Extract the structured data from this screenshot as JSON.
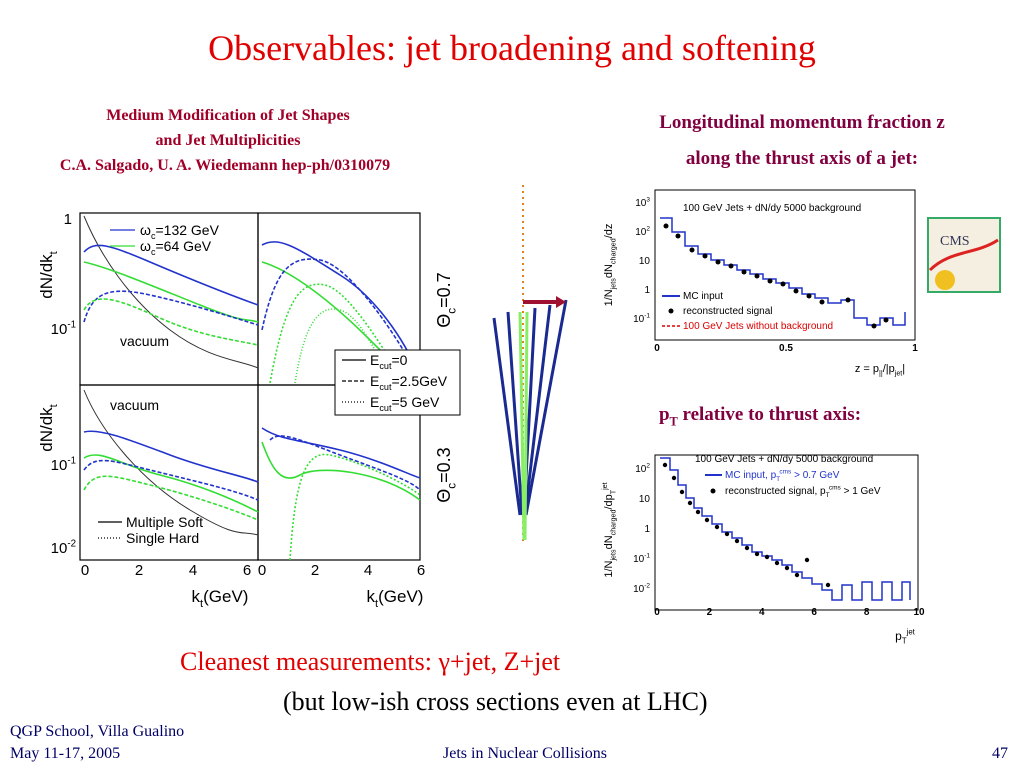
{
  "title": "Observables: jet broadening and softening",
  "left_caption": [
    "Medium Modification of Jet Shapes",
    "and Jet Multiplicities",
    "C.A. Salgado, U. A. Wiedemann hep-ph/0310079"
  ],
  "left_figure": {
    "y_label": [
      "dN/dk",
      {
        "sub": "t"
      }
    ],
    "x_label": [
      "k",
      {
        "sub": "t"
      },
      "(GeV)"
    ],
    "y_ticks_top": [
      "1",
      [
        "10",
        {
          "sup": "-1"
        }
      ]
    ],
    "y_ticks_bottom": [
      [
        "10",
        {
          "sup": "-1"
        }
      ],
      [
        "10",
        {
          "sup": "-2"
        }
      ]
    ],
    "x_ticks": [
      "0",
      "2",
      "4",
      "6"
    ],
    "omega_legend": [
      [
        "ω",
        {
          "sub": "c"
        },
        "=132 GeV"
      ],
      [
        "ω",
        {
          "sub": "c"
        },
        "=64 GeV"
      ]
    ],
    "ecut_legend": [
      [
        "E",
        {
          "sub": "cut"
        },
        "=0"
      ],
      [
        "E",
        {
          "sub": "cut"
        },
        "=2.5GeV"
      ],
      [
        "E",
        {
          "sub": "cut"
        },
        "=5 GeV"
      ]
    ],
    "theta_labels": [
      [
        "Θ",
        {
          "sub": "c"
        },
        "=0.7"
      ],
      [
        "Θ",
        {
          "sub": "c"
        },
        "=0.3"
      ]
    ],
    "vacuum": "vacuum",
    "soft_hard_legend": [
      "Multiple Soft",
      "Single Hard"
    ]
  },
  "right_top": {
    "caption": [
      "Longitudinal momentum fraction z",
      "along the thrust axis of a jet:"
    ],
    "header": "100 GeV Jets + dN/dy 5000 background",
    "legend": [
      "MC input",
      "reconstructed signal",
      "100 GeV Jets without background"
    ],
    "y_label": [
      "1/N",
      {
        "sub": "jets"
      },
      "dN",
      {
        "sub": "charged"
      },
      "/dz"
    ],
    "x_label": [
      "z = p",
      {
        "sub": "||"
      },
      "/|p",
      {
        "sub": "jet"
      },
      "|"
    ],
    "y_ticks": [
      [
        "10",
        {
          "sup": "3"
        }
      ],
      [
        "10",
        {
          "sup": "2"
        }
      ],
      "10",
      "1",
      [
        "10",
        {
          "sup": "-1"
        }
      ]
    ],
    "x_ticks": [
      "0",
      "0.5",
      "1"
    ]
  },
  "right_bottom": {
    "caption": [
      "p",
      {
        "sub": "T"
      },
      " relative to thrust axis:"
    ],
    "header": "100 GeV Jets + dN/dy 5000 background",
    "legend": [
      [
        "MC input, p",
        {
          "sub": "T"
        },
        {
          "sup": "cms"
        },
        " > 0.7 GeV"
      ],
      [
        "reconstructed signal, p",
        {
          "sub": "T"
        },
        {
          "sup": "cms"
        },
        " > 1 GeV"
      ]
    ],
    "y_label": [
      "1/N",
      {
        "sub": "jets"
      },
      "dN",
      {
        "sub": "charged"
      },
      "/dp",
      {
        "sub": "T"
      },
      {
        "sup": "jet"
      }
    ],
    "x_label": [
      "p",
      {
        "sub": "T"
      },
      {
        "sup": "jet"
      }
    ],
    "y_ticks": [
      [
        "10",
        {
          "sup": "2"
        }
      ],
      "10",
      "1",
      [
        "10",
        {
          "sup": "-1"
        }
      ],
      [
        "10",
        {
          "sup": "-2"
        }
      ]
    ],
    "x_ticks": [
      "0",
      "2",
      "4",
      "6",
      "8",
      "10"
    ]
  },
  "logo": "CMS",
  "bottom_text": [
    "Cleanest measurements: γ+jet, Z+jet",
    "(but low-ish cross sections even at LHC)"
  ],
  "footer": {
    "left": [
      "QGP School, Villa Gualino",
      "May 11-17, 2005"
    ],
    "center": "Jets in Nuclear Collisions",
    "page": "47"
  }
}
